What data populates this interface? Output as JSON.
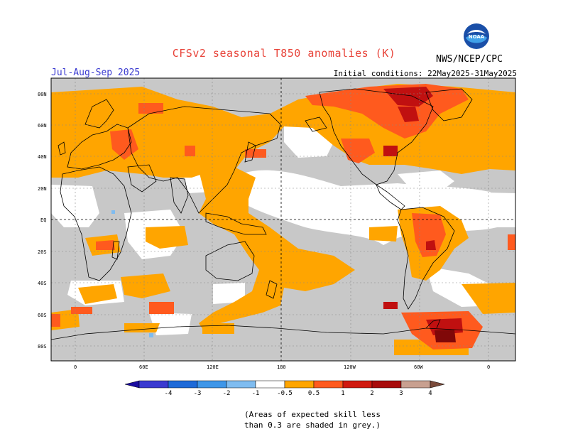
{
  "title": "CFSv2 seasonal T850 anomalies (K)",
  "period": "Jul-Aug-Sep 2025",
  "initial_conditions": "Initial conditions: 22May2025-31May2025",
  "agency": "NWS/NCEP/CPC",
  "logo_text": "NOAA",
  "lat_ticks": [
    "80N",
    "60N",
    "40N",
    "20N",
    "EQ",
    "20S",
    "40S",
    "60S",
    "80S"
  ],
  "lon_ticks": [
    "0",
    "60E",
    "120E",
    "180",
    "120W",
    "60W",
    "0"
  ],
  "colorbar": {
    "labels": [
      "-4",
      "-3",
      "-2",
      "-1",
      "-0.5",
      "0.5",
      "1",
      "2",
      "3",
      "4"
    ],
    "colors": [
      "#1a0ca0",
      "#3a3ad0",
      "#1e6ad8",
      "#3f96e8",
      "#7fbcf0",
      "#ffffff",
      "#ffa500",
      "#ff5a1e",
      "#d01a10",
      "#a80c0c",
      "#c8a090",
      "#7a4a3a"
    ]
  },
  "colors": {
    "grey_skill": "#c8c8c8",
    "anom_05_1": "#ffa500",
    "anom_1_2": "#ff5a1e",
    "anom_2_3": "#c01010",
    "anom_3_4": "#800808",
    "title_red": "#e8443a",
    "period_blue": "#3a3ad0"
  },
  "note": {
    "line1": "(Areas of expected skill less",
    "line2": "than 0.3 are shaded in grey.)"
  }
}
